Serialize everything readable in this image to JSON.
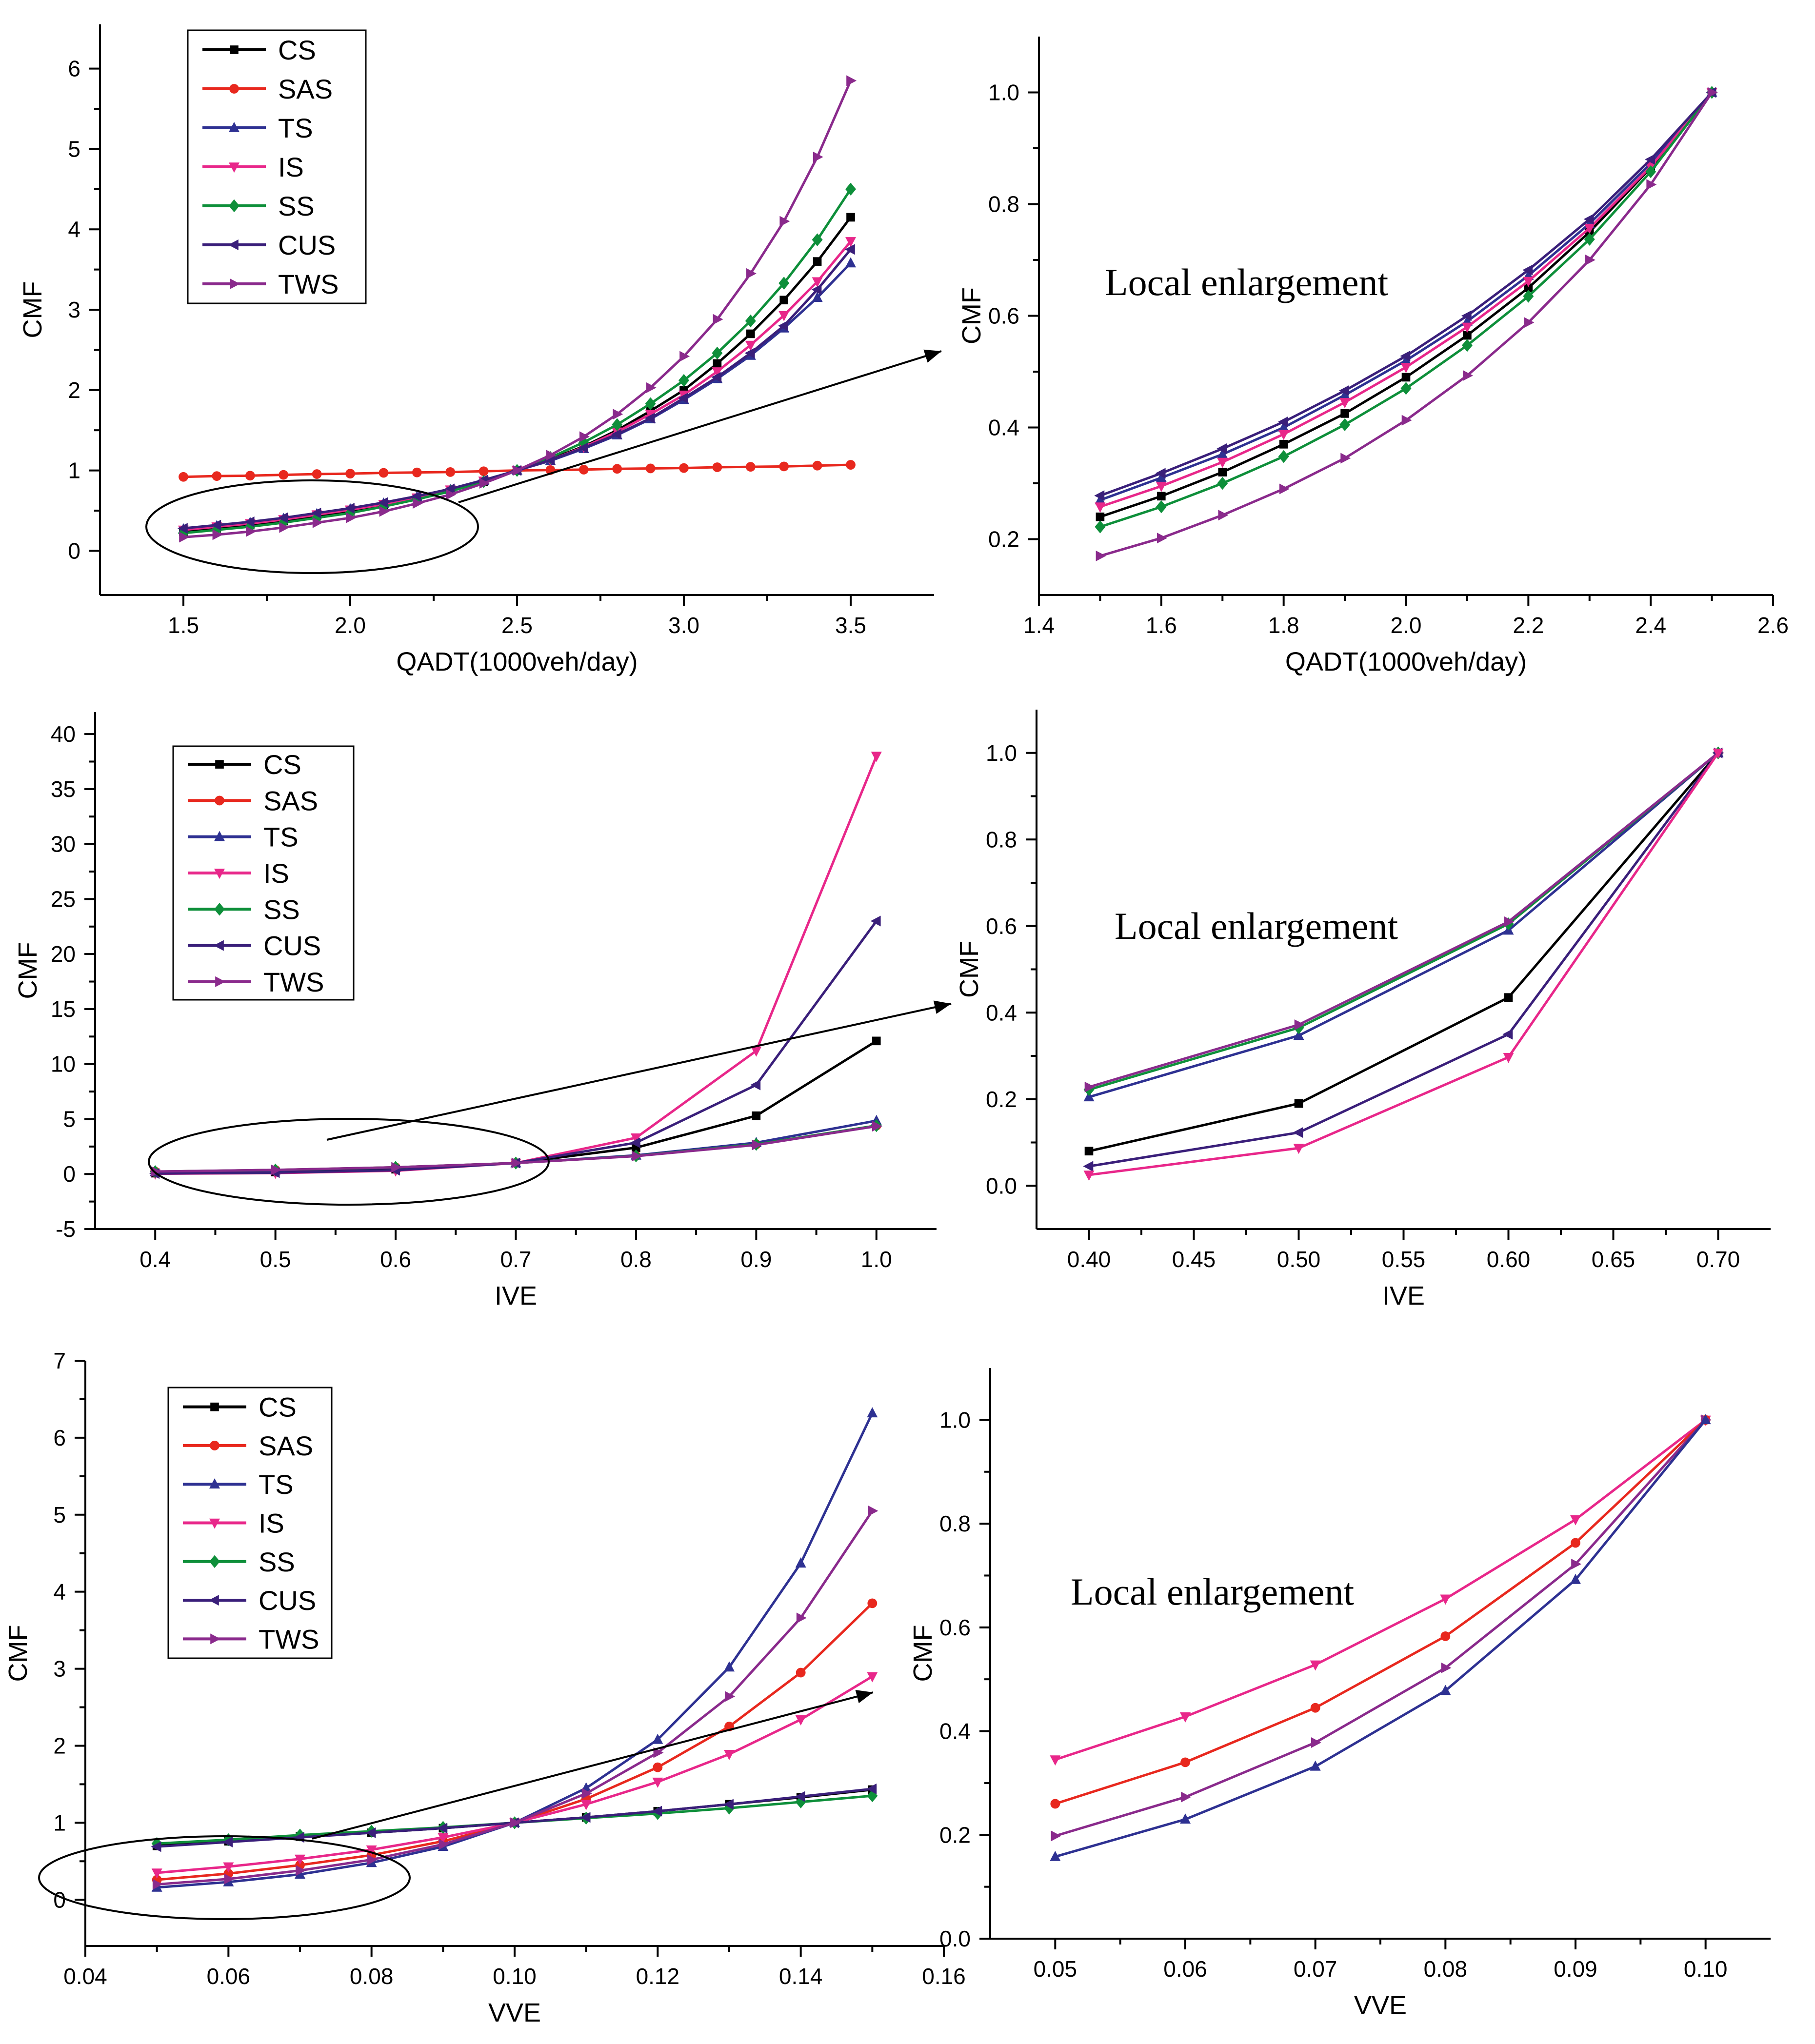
{
  "colors": {
    "CS": "#000000",
    "SAS": "#e8281e",
    "TS": "#2e3192",
    "IS": "#e8278a",
    "SS": "#0e8f3a",
    "CUS": "#3a1f7a",
    "TWS": "#8a2a8c"
  },
  "chart_data": [
    {
      "id": "qadt-full",
      "type": "line",
      "xlabel": "QADT(1000veh/day)",
      "ylabel": "CMF",
      "xlim": [
        1.25,
        3.75
      ],
      "ylim": [
        -0.55,
        6.55
      ],
      "xticks": [
        1.5,
        2.0,
        2.5,
        3.0,
        3.5
      ],
      "xtick_labels": [
        "1.5",
        "2.0",
        "2.5",
        "3.0",
        "3.5"
      ],
      "yticks": [
        0,
        1,
        2,
        3,
        4,
        5,
        6
      ],
      "ytick_labels": [
        "0",
        "1",
        "2",
        "3",
        "4",
        "5",
        "6"
      ],
      "legend": [
        "CS",
        "SAS",
        "TS",
        "IS",
        "SS",
        "CUS",
        "TWS"
      ],
      "x": [
        1.5,
        1.6,
        1.7,
        1.8,
        1.9,
        2.0,
        2.1,
        2.2,
        2.3,
        2.4,
        2.5,
        2.6,
        2.7,
        2.8,
        2.9,
        3.0,
        3.1,
        3.2,
        3.3,
        3.4,
        3.5
      ],
      "series": [
        {
          "name": "CS",
          "values": [
            0.24,
            0.28,
            0.32,
            0.37,
            0.43,
            0.49,
            0.57,
            0.65,
            0.75,
            0.86,
            1.0,
            1.14,
            1.3,
            1.5,
            1.74,
            2.0,
            2.33,
            2.7,
            3.12,
            3.6,
            4.15
          ]
        },
        {
          "name": "SAS",
          "values": [
            0.92,
            0.93,
            0.935,
            0.945,
            0.955,
            0.96,
            0.97,
            0.975,
            0.98,
            0.99,
            1.0,
            1.005,
            1.01,
            1.02,
            1.025,
            1.03,
            1.04,
            1.045,
            1.05,
            1.06,
            1.07
          ]
        },
        {
          "name": "TS",
          "values": [
            0.27,
            0.31,
            0.35,
            0.4,
            0.46,
            0.52,
            0.59,
            0.67,
            0.76,
            0.87,
            1.0,
            1.12,
            1.27,
            1.44,
            1.64,
            1.88,
            2.14,
            2.43,
            2.77,
            3.15,
            3.58
          ]
        },
        {
          "name": "IS",
          "values": [
            0.26,
            0.3,
            0.34,
            0.39,
            0.45,
            0.51,
            0.58,
            0.66,
            0.76,
            0.87,
            1.0,
            1.13,
            1.29,
            1.48,
            1.7,
            1.94,
            2.23,
            2.56,
            2.93,
            3.35,
            3.85
          ]
        },
        {
          "name": "SS",
          "values": [
            0.22,
            0.26,
            0.3,
            0.35,
            0.41,
            0.47,
            0.55,
            0.64,
            0.74,
            0.86,
            1.0,
            1.16,
            1.35,
            1.57,
            1.83,
            2.12,
            2.46,
            2.86,
            3.33,
            3.87,
            4.5
          ]
        },
        {
          "name": "CUS",
          "values": [
            0.28,
            0.32,
            0.36,
            0.41,
            0.47,
            0.53,
            0.6,
            0.68,
            0.77,
            0.88,
            1.0,
            1.13,
            1.28,
            1.45,
            1.65,
            1.9,
            2.16,
            2.46,
            2.8,
            3.25,
            3.75
          ]
        },
        {
          "name": "TWS",
          "values": [
            0.17,
            0.2,
            0.24,
            0.29,
            0.35,
            0.41,
            0.49,
            0.59,
            0.7,
            0.84,
            1.0,
            1.19,
            1.42,
            1.7,
            2.03,
            2.42,
            2.88,
            3.45,
            4.1,
            4.9,
            5.85
          ]
        }
      ],
      "annotations": []
    },
    {
      "id": "qadt-zoom",
      "type": "line",
      "xlabel": "QADT(1000veh/day)",
      "ylabel": "CMF",
      "xlim": [
        1.4,
        2.6
      ],
      "ylim": [
        0.1,
        1.1
      ],
      "xticks": [
        1.4,
        1.6,
        1.8,
        2.0,
        2.2,
        2.4,
        2.6
      ],
      "xtick_labels": [
        "1.4",
        "1.6",
        "1.8",
        "2.0",
        "2.2",
        "2.4",
        "2.6"
      ],
      "yticks": [
        0.2,
        0.4,
        0.6,
        0.8,
        1.0
      ],
      "ytick_labels": [
        "0.2",
        "0.4",
        "0.6",
        "0.8",
        "1.0"
      ],
      "legend": [],
      "x": [
        1.5,
        1.6,
        1.7,
        1.8,
        1.9,
        2.0,
        2.1,
        2.2,
        2.3,
        2.4,
        2.5
      ],
      "series": [
        {
          "name": "CS",
          "values": [
            0.24,
            0.277,
            0.32,
            0.37,
            0.425,
            0.49,
            0.565,
            0.65,
            0.75,
            0.865,
            1.0
          ]
        },
        {
          "name": "TS",
          "values": [
            0.27,
            0.31,
            0.352,
            0.4,
            0.458,
            0.52,
            0.59,
            0.672,
            0.765,
            0.873,
            1.0
          ]
        },
        {
          "name": "IS",
          "values": [
            0.258,
            0.295,
            0.338,
            0.388,
            0.445,
            0.508,
            0.58,
            0.662,
            0.757,
            0.867,
            1.0
          ]
        },
        {
          "name": "SS",
          "values": [
            0.222,
            0.258,
            0.3,
            0.348,
            0.405,
            0.47,
            0.547,
            0.635,
            0.737,
            0.858,
            1.0
          ]
        },
        {
          "name": "CUS",
          "values": [
            0.278,
            0.318,
            0.362,
            0.41,
            0.466,
            0.528,
            0.6,
            0.682,
            0.773,
            0.88,
            1.0
          ]
        },
        {
          "name": "TWS",
          "values": [
            0.17,
            0.202,
            0.243,
            0.29,
            0.345,
            0.413,
            0.493,
            0.588,
            0.7,
            0.835,
            1.0
          ]
        }
      ],
      "annotations": [
        "Local enlargement"
      ]
    },
    {
      "id": "ive-full",
      "type": "line",
      "xlabel": "IVE",
      "ylabel": "CMF",
      "xlim": [
        0.35,
        1.05
      ],
      "ylim": [
        -5,
        42
      ],
      "xticks": [
        0.4,
        0.5,
        0.6,
        0.7,
        0.8,
        0.9,
        1.0
      ],
      "xtick_labels": [
        "0.4",
        "0.5",
        "0.6",
        "0.7",
        "0.8",
        "0.9",
        "1.0"
      ],
      "yticks": [
        -5,
        0,
        5,
        10,
        15,
        20,
        25,
        30,
        35,
        40
      ],
      "ytick_labels": [
        "-5",
        "0",
        "5",
        "10",
        "15",
        "20",
        "25",
        "30",
        "35",
        "40"
      ],
      "legend": [
        "CS",
        "SAS",
        "TS",
        "IS",
        "SS",
        "CUS",
        "TWS"
      ],
      "x": [
        0.4,
        0.5,
        0.6,
        0.7,
        0.8,
        0.9,
        1.0
      ],
      "series": [
        {
          "name": "CS",
          "values": [
            0.08,
            0.19,
            0.44,
            1.0,
            2.4,
            5.3,
            12.1
          ]
        },
        {
          "name": "SAS",
          "values": [
            0.22,
            0.37,
            0.61,
            1.0,
            1.65,
            2.7,
            4.4
          ]
        },
        {
          "name": "TS",
          "values": [
            0.2,
            0.35,
            0.59,
            1.0,
            1.7,
            2.85,
            4.85
          ]
        },
        {
          "name": "IS",
          "values": [
            0.025,
            0.088,
            0.3,
            1.0,
            3.3,
            11.2,
            38.0
          ]
        },
        {
          "name": "SS",
          "values": [
            0.22,
            0.37,
            0.61,
            1.0,
            1.65,
            2.7,
            4.4
          ]
        },
        {
          "name": "CUS",
          "values": [
            0.045,
            0.125,
            0.35,
            1.0,
            2.85,
            8.1,
            23.0
          ]
        },
        {
          "name": "TWS",
          "values": [
            0.23,
            0.375,
            0.615,
            1.0,
            1.63,
            2.65,
            4.35
          ]
        }
      ],
      "annotations": []
    },
    {
      "id": "ive-zoom",
      "type": "line",
      "xlabel": "IVE",
      "ylabel": "CMF",
      "xlim": [
        0.375,
        0.725
      ],
      "ylim": [
        -0.1,
        1.1
      ],
      "xticks": [
        0.4,
        0.45,
        0.5,
        0.55,
        0.6,
        0.65,
        0.7
      ],
      "xtick_labels": [
        "0.40",
        "0.45",
        "0.50",
        "0.55",
        "0.60",
        "0.65",
        "0.70"
      ],
      "yticks": [
        0.0,
        0.2,
        0.4,
        0.6,
        0.8,
        1.0
      ],
      "ytick_labels": [
        "0.0",
        "0.2",
        "0.4",
        "0.6",
        "0.8",
        "1.0"
      ],
      "legend": [],
      "x": [
        0.4,
        0.5,
        0.6,
        0.7
      ],
      "series": [
        {
          "name": "CS",
          "values": [
            0.08,
            0.19,
            0.435,
            1.0
          ]
        },
        {
          "name": "TS",
          "values": [
            0.205,
            0.347,
            0.59,
            1.0
          ]
        },
        {
          "name": "SS",
          "values": [
            0.222,
            0.365,
            0.605,
            1.0
          ]
        },
        {
          "name": "TWS",
          "values": [
            0.228,
            0.372,
            0.61,
            1.0
          ]
        },
        {
          "name": "CUS",
          "values": [
            0.045,
            0.123,
            0.35,
            1.0
          ]
        },
        {
          "name": "IS",
          "values": [
            0.025,
            0.087,
            0.297,
            1.0
          ]
        }
      ],
      "annotations": [
        "Local enlargement"
      ]
    },
    {
      "id": "vve-full",
      "type": "line",
      "xlabel": "VVE",
      "ylabel": "CMF",
      "xlim": [
        0.04,
        0.16
      ],
      "ylim": [
        -0.6,
        7.0
      ],
      "xticks": [
        0.04,
        0.06,
        0.08,
        0.1,
        0.12,
        0.14,
        0.16
      ],
      "xtick_labels": [
        "0.04",
        "0.06",
        "0.08",
        "0.10",
        "0.12",
        "0.14",
        "0.16"
      ],
      "yticks": [
        0,
        1,
        2,
        3,
        4,
        5,
        6,
        7
      ],
      "ytick_labels": [
        "0",
        "1",
        "2",
        "3",
        "4",
        "5",
        "6",
        "7"
      ],
      "legend": [
        "CS",
        "SAS",
        "TS",
        "IS",
        "SS",
        "CUS",
        "TWS"
      ],
      "x": [
        0.05,
        0.06,
        0.07,
        0.08,
        0.09,
        0.1,
        0.11,
        0.12,
        0.13,
        0.14,
        0.15
      ],
      "series": [
        {
          "name": "CS",
          "values": [
            0.7,
            0.76,
            0.82,
            0.87,
            0.93,
            1.0,
            1.07,
            1.15,
            1.24,
            1.33,
            1.43
          ]
        },
        {
          "name": "SAS",
          "values": [
            0.26,
            0.34,
            0.45,
            0.58,
            0.76,
            1.0,
            1.31,
            1.72,
            2.25,
            2.95,
            3.85
          ]
        },
        {
          "name": "TS",
          "values": [
            0.16,
            0.23,
            0.33,
            0.48,
            0.69,
            1.0,
            1.45,
            2.08,
            3.02,
            4.37,
            6.32
          ]
        },
        {
          "name": "IS",
          "values": [
            0.35,
            0.43,
            0.53,
            0.65,
            0.81,
            1.0,
            1.24,
            1.53,
            1.89,
            2.34,
            2.9
          ]
        },
        {
          "name": "SS",
          "values": [
            0.73,
            0.78,
            0.84,
            0.89,
            0.94,
            1.0,
            1.06,
            1.12,
            1.19,
            1.27,
            1.35
          ]
        },
        {
          "name": "CUS",
          "values": [
            0.69,
            0.75,
            0.81,
            0.87,
            0.93,
            1.0,
            1.07,
            1.15,
            1.24,
            1.34,
            1.44
          ]
        },
        {
          "name": "TWS",
          "values": [
            0.2,
            0.27,
            0.38,
            0.52,
            0.72,
            1.0,
            1.38,
            1.91,
            2.64,
            3.66,
            5.05
          ]
        }
      ],
      "annotations": []
    },
    {
      "id": "vve-zoom",
      "type": "line",
      "xlabel": "VVE",
      "ylabel": "CMF",
      "xlim": [
        0.045,
        0.105
      ],
      "ylim": [
        0.0,
        1.1
      ],
      "xticks": [
        0.05,
        0.06,
        0.07,
        0.08,
        0.09,
        0.1
      ],
      "xtick_labels": [
        "0.05",
        "0.06",
        "0.07",
        "0.08",
        "0.09",
        "0.10"
      ],
      "yticks": [
        0.0,
        0.2,
        0.4,
        0.6,
        0.8,
        1.0
      ],
      "ytick_labels": [
        "0.0",
        "0.2",
        "0.4",
        "0.6",
        "0.8",
        "1.0"
      ],
      "legend": [],
      "x": [
        0.05,
        0.06,
        0.07,
        0.08,
        0.09,
        0.1
      ],
      "series": [
        {
          "name": "IS",
          "values": [
            0.345,
            0.428,
            0.528,
            0.655,
            0.808,
            1.0
          ]
        },
        {
          "name": "SAS",
          "values": [
            0.26,
            0.34,
            0.445,
            0.583,
            0.763,
            1.0
          ]
        },
        {
          "name": "TWS",
          "values": [
            0.198,
            0.273,
            0.378,
            0.522,
            0.722,
            1.0
          ]
        },
        {
          "name": "TS",
          "values": [
            0.158,
            0.23,
            0.332,
            0.478,
            0.692,
            1.0
          ]
        }
      ],
      "annotations": [
        "Local enlargement"
      ]
    }
  ]
}
